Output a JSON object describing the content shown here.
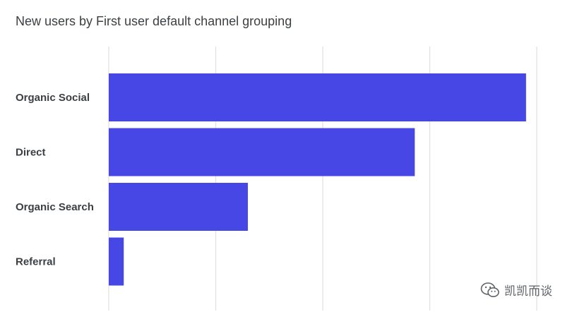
{
  "chart_data": {
    "type": "bar",
    "orientation": "horizontal",
    "title": "New users by First user default channel grouping",
    "categories": [
      "Organic Social",
      "Direct",
      "Organic Search",
      "Referral"
    ],
    "values": [
      3.9,
      2.86,
      1.3,
      0.14
    ],
    "xlim": [
      0,
      4
    ],
    "grid": true,
    "bar_color": "#4747e6",
    "gridline_color": "#e0e0e0"
  },
  "watermark": {
    "text": "凯凯而谈",
    "icon": "wechat-icon"
  }
}
